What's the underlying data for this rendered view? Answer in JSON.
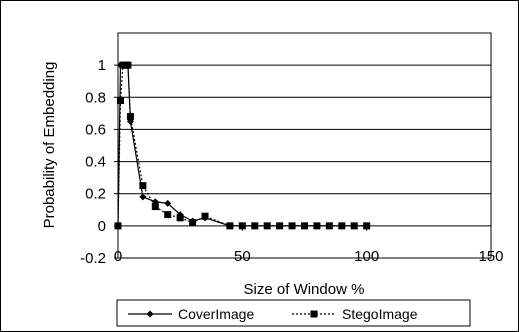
{
  "chart_data": {
    "type": "line",
    "title": "",
    "xlabel": "Size of Window %",
    "ylabel": "Probability of Embedding",
    "xlim": [
      0,
      150
    ],
    "ylim": [
      -0.2,
      1.2
    ],
    "x_ticks": [
      0,
      50,
      100,
      150
    ],
    "y_ticks": [
      -0.2,
      0,
      0.2,
      0.4,
      0.6,
      0.8,
      1
    ],
    "x_tick_labels": [
      "0",
      "50",
      "100",
      "150"
    ],
    "y_tick_labels": [
      "-0.2",
      "0",
      "0.2",
      "0.4",
      "0.6",
      "0.8",
      "1"
    ],
    "grid": "horizontal",
    "legend_position": "bottom",
    "series": [
      {
        "name": "CoverImage",
        "style": "solid",
        "marker": "diamond",
        "color": "#000000",
        "x": [
          0,
          1,
          2,
          3,
          4,
          5,
          10,
          15,
          20,
          25,
          30,
          35,
          45,
          50,
          55,
          60,
          65,
          70,
          75,
          80,
          85,
          90,
          95,
          100
        ],
        "y": [
          0,
          1,
          1,
          1,
          1,
          0.65,
          0.18,
          0.15,
          0.14,
          0.07,
          0.03,
          0.05,
          0,
          0,
          0,
          0,
          0,
          0,
          0,
          0,
          0,
          0,
          0,
          0
        ]
      },
      {
        "name": "StegoImage",
        "style": "dotted",
        "marker": "square",
        "color": "#000000",
        "x": [
          0,
          1,
          2,
          3,
          4,
          5,
          10,
          15,
          20,
          25,
          30,
          35,
          45,
          50,
          55,
          60,
          65,
          70,
          75,
          80,
          85,
          90,
          95,
          100
        ],
        "y": [
          0,
          0.78,
          1,
          1,
          1,
          0.68,
          0.25,
          0.12,
          0.07,
          0.05,
          0.02,
          0.06,
          0,
          0,
          0,
          0,
          0,
          0,
          0,
          0,
          0,
          0,
          0,
          0
        ]
      }
    ]
  }
}
